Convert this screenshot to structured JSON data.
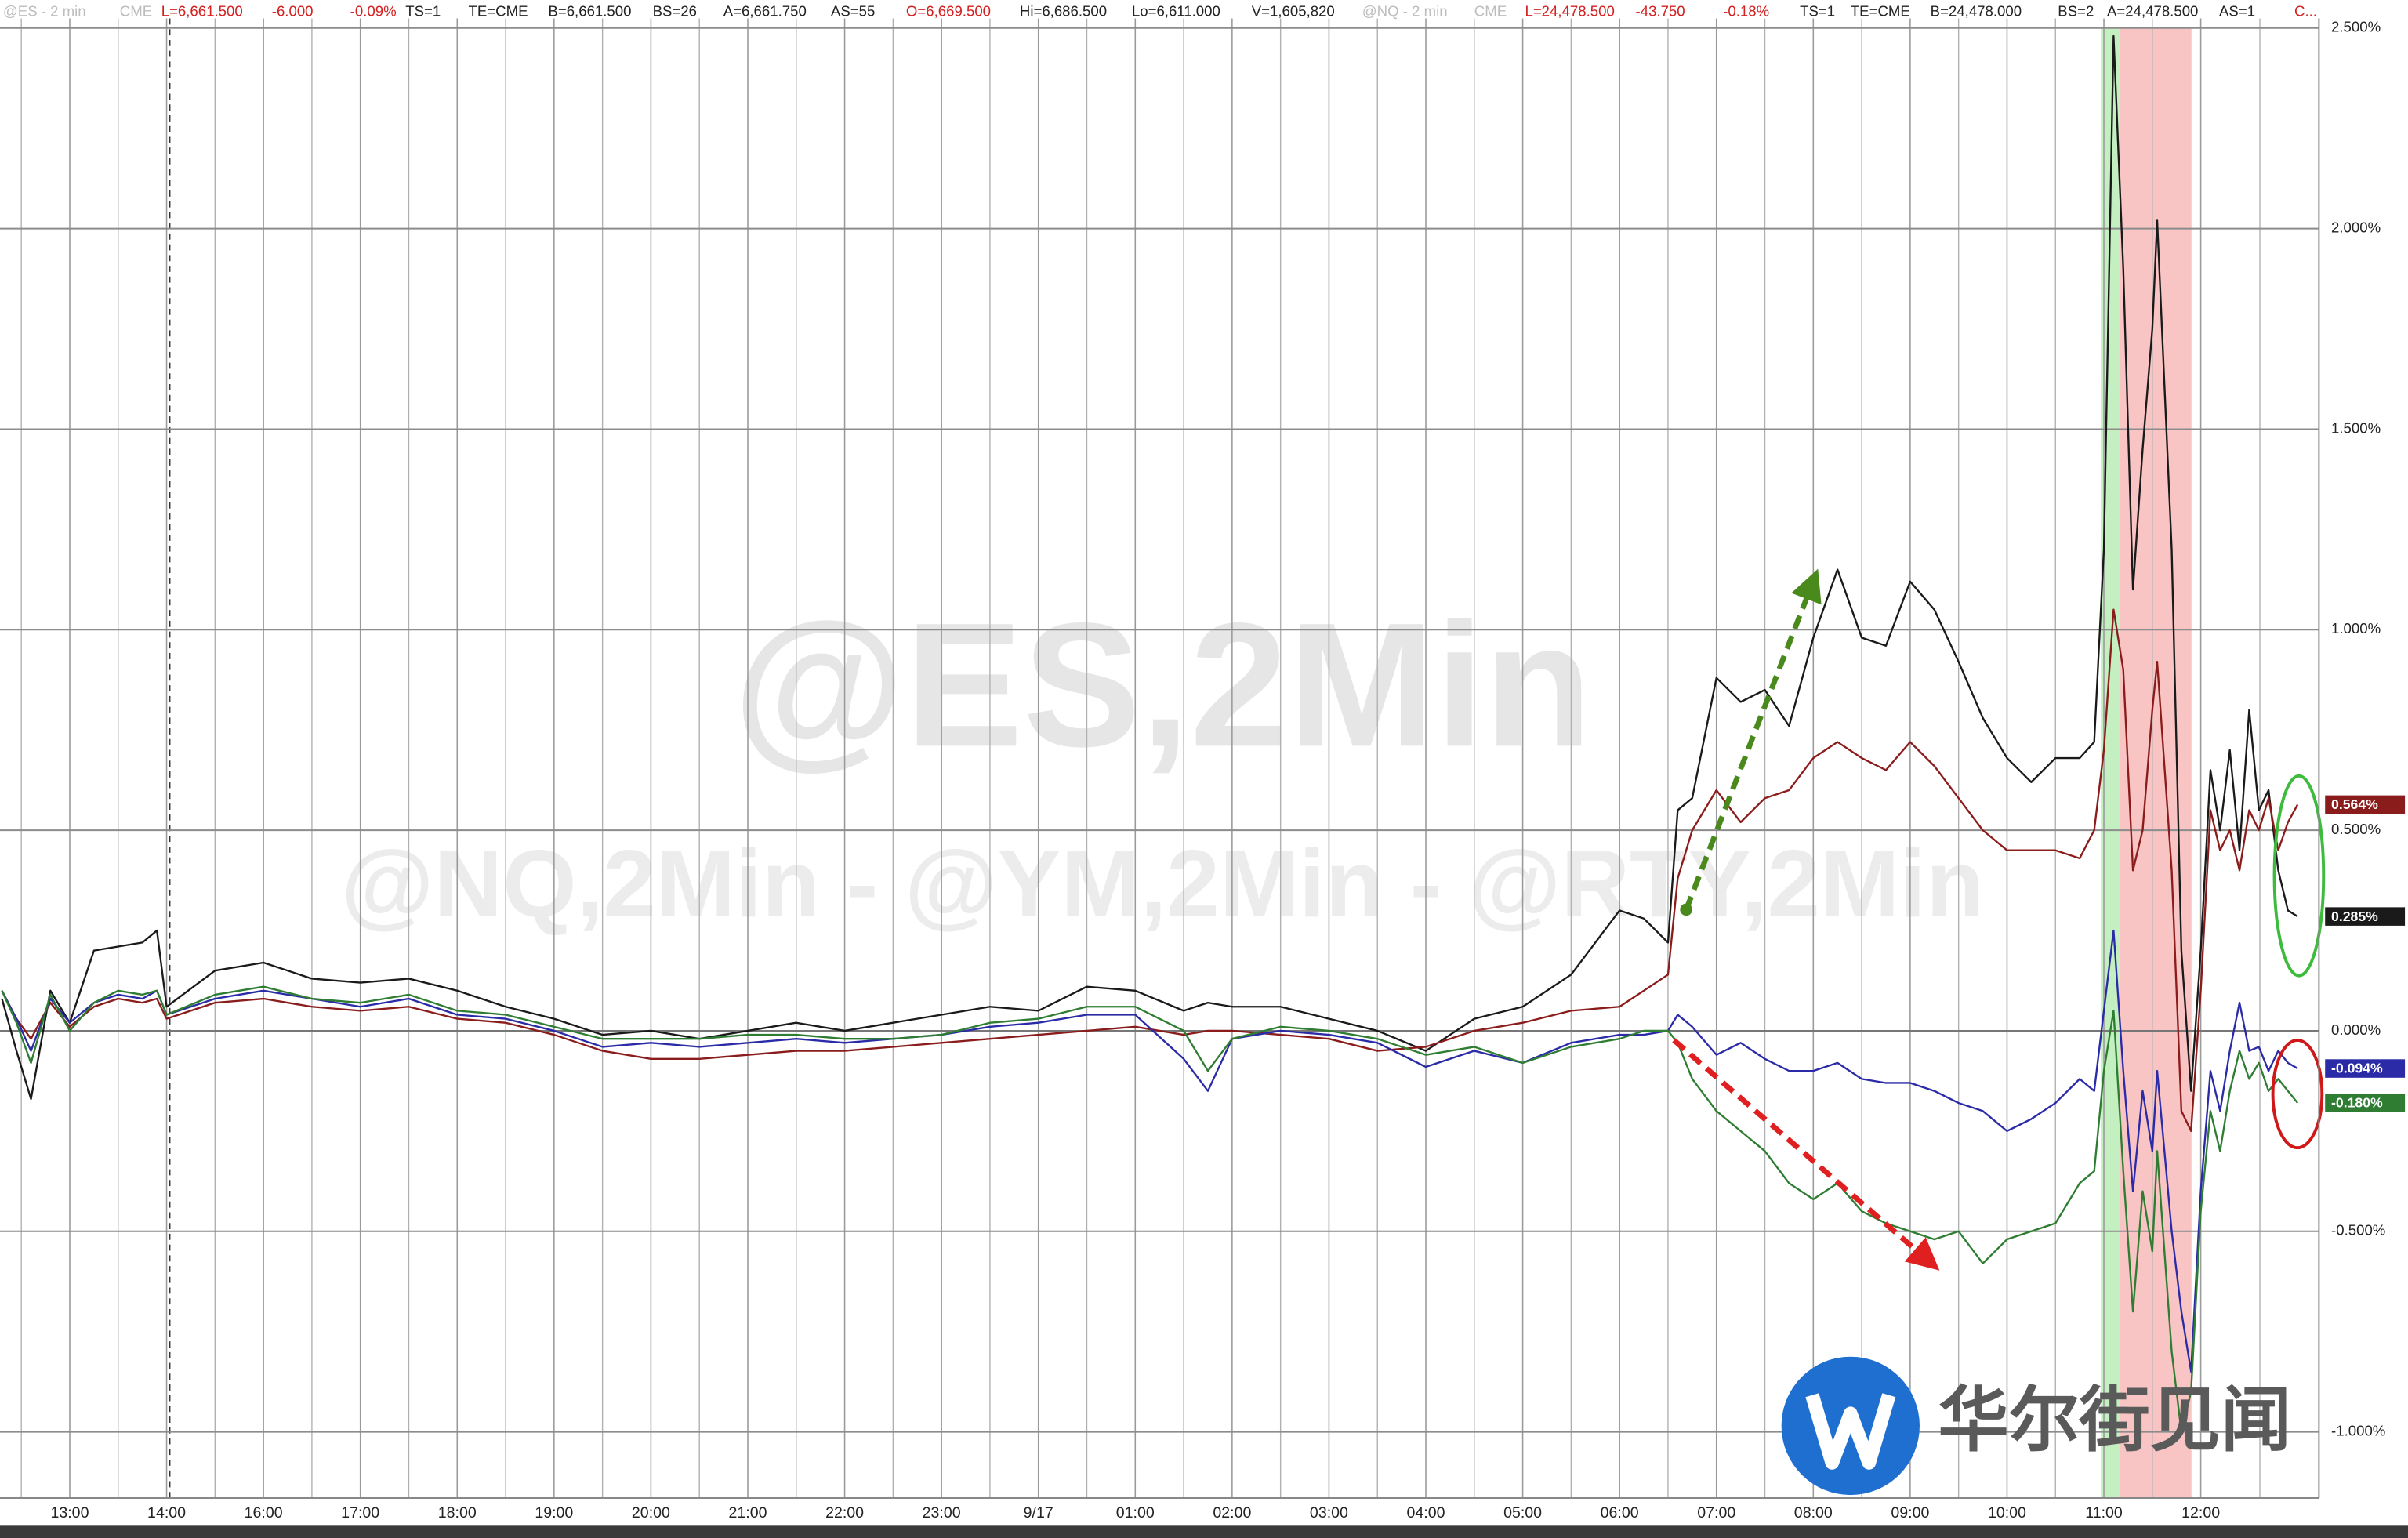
{
  "chart_data": {
    "type": "line",
    "header": [
      {
        "text": "@ES - 2 min",
        "color": "#bdbdbd"
      },
      {
        "text": "CME",
        "color": "#bdbdbd"
      },
      {
        "text": "L=6,661.500",
        "color": "#d42020"
      },
      {
        "text": "-6.000",
        "color": "#d42020"
      },
      {
        "text": "-0.09%",
        "color": "#d42020"
      },
      {
        "text": "TS=1",
        "color": "#222222"
      },
      {
        "text": "TE=CME",
        "color": "#222222"
      },
      {
        "text": "B=6,661.500",
        "color": "#222222"
      },
      {
        "text": "BS=26",
        "color": "#222222"
      },
      {
        "text": "A=6,661.750",
        "color": "#222222"
      },
      {
        "text": "AS=55",
        "color": "#222222"
      },
      {
        "text": "O=6,669.500",
        "color": "#d42020"
      },
      {
        "text": "Hi=6,686.500",
        "color": "#222222"
      },
      {
        "text": "Lo=6,611.000",
        "color": "#222222"
      },
      {
        "text": "V=1,605,820",
        "color": "#222222"
      },
      {
        "text": "@NQ - 2 min",
        "color": "#bdbdbd"
      },
      {
        "text": "CME",
        "color": "#bdbdbd"
      },
      {
        "text": "L=24,478.500",
        "color": "#d42020"
      },
      {
        "text": "-43.750",
        "color": "#d42020"
      },
      {
        "text": "-0.18%",
        "color": "#d42020"
      },
      {
        "text": "TS=1",
        "color": "#222222"
      },
      {
        "text": "TE=CME",
        "color": "#222222"
      },
      {
        "text": "B=24,478.000",
        "color": "#222222"
      },
      {
        "text": "BS=2",
        "color": "#222222"
      },
      {
        "text": "A=24,478.500",
        "color": "#222222"
      },
      {
        "text": "AS=1",
        "color": "#222222"
      },
      {
        "text": "C...",
        "color": "#d42020"
      }
    ],
    "watermarks": [
      "@ES,2Min",
      "@NQ,2Min - @YM,2Min - @RTY,2Min"
    ],
    "logo_text": "华尔街见闻",
    "x": [
      -0.7,
      -0.55,
      -0.4,
      -0.2,
      0,
      0.25,
      0.5,
      0.75,
      0.9,
      1.0,
      1.5,
      2,
      2.5,
      3,
      3.5,
      4,
      4.5,
      5,
      5.5,
      6,
      6.5,
      7,
      7.5,
      8,
      8.5,
      9,
      9.5,
      10,
      10.5,
      11,
      11.5,
      11.75,
      12,
      12.5,
      13,
      13.5,
      14,
      14.5,
      15,
      15.5,
      16,
      16.25,
      16.5,
      16.6,
      16.75,
      17,
      17.25,
      17.5,
      17.75,
      18,
      18.25,
      18.5,
      18.75,
      19,
      19.25,
      19.5,
      19.75,
      20,
      20.25,
      20.5,
      20.75,
      20.9,
      21.0,
      21.1,
      21.2,
      21.3,
      21.4,
      21.5,
      21.55,
      21.7,
      21.8,
      21.9,
      22.0,
      22.1,
      22.2,
      22.3,
      22.4,
      22.5,
      22.6,
      22.7,
      22.8,
      22.9,
      23.0
    ],
    "series": [
      {
        "color": "#1a1a1a",
        "last_label": "0.285%",
        "values": [
          0.08,
          -0.05,
          -0.17,
          0.1,
          0.02,
          0.2,
          0.21,
          0.22,
          0.25,
          0.06,
          0.15,
          0.17,
          0.13,
          0.12,
          0.13,
          0.1,
          0.06,
          0.03,
          -0.01,
          0.0,
          -0.02,
          0.0,
          0.02,
          0.0,
          0.02,
          0.04,
          0.06,
          0.05,
          0.11,
          0.1,
          0.05,
          0.07,
          0.06,
          0.06,
          0.03,
          0.0,
          -0.05,
          0.03,
          0.06,
          0.14,
          0.3,
          0.28,
          0.22,
          0.55,
          0.58,
          0.88,
          0.82,
          0.85,
          0.76,
          0.98,
          1.15,
          0.98,
          0.96,
          1.12,
          1.05,
          0.92,
          0.78,
          0.68,
          0.62,
          0.68,
          0.68,
          0.72,
          1.2,
          2.48,
          1.9,
          1.1,
          1.45,
          1.75,
          2.02,
          1.2,
          0.2,
          -0.15,
          0.2,
          0.65,
          0.5,
          0.7,
          0.45,
          0.8,
          0.55,
          0.6,
          0.4,
          0.3,
          0.285
        ]
      },
      {
        "color": "#8b1c1c",
        "last_label": "0.564%",
        "values": [
          0.1,
          0.03,
          -0.02,
          0.07,
          0.01,
          0.06,
          0.08,
          0.07,
          0.08,
          0.03,
          0.07,
          0.08,
          0.06,
          0.05,
          0.06,
          0.03,
          0.02,
          -0.01,
          -0.05,
          -0.07,
          -0.07,
          -0.06,
          -0.05,
          -0.05,
          -0.04,
          -0.03,
          -0.02,
          -0.01,
          0.0,
          0.01,
          -0.01,
          0.0,
          0.0,
          -0.01,
          -0.02,
          -0.05,
          -0.04,
          0.0,
          0.02,
          0.05,
          0.06,
          0.1,
          0.14,
          0.38,
          0.5,
          0.6,
          0.52,
          0.58,
          0.6,
          0.68,
          0.72,
          0.68,
          0.65,
          0.72,
          0.66,
          0.58,
          0.5,
          0.45,
          0.45,
          0.45,
          0.43,
          0.5,
          0.7,
          1.05,
          0.9,
          0.4,
          0.5,
          0.8,
          0.92,
          0.4,
          -0.2,
          -0.25,
          0.1,
          0.55,
          0.45,
          0.5,
          0.4,
          0.55,
          0.5,
          0.58,
          0.45,
          0.52,
          0.564
        ]
      },
      {
        "color": "#2b2ba8",
        "last_label": "-0.094%",
        "values": [
          0.1,
          0.03,
          -0.05,
          0.08,
          0.02,
          0.07,
          0.09,
          0.08,
          0.1,
          0.04,
          0.08,
          0.1,
          0.08,
          0.06,
          0.08,
          0.04,
          0.03,
          0.0,
          -0.04,
          -0.03,
          -0.04,
          -0.03,
          -0.02,
          -0.03,
          -0.02,
          -0.01,
          0.01,
          0.02,
          0.04,
          0.04,
          -0.07,
          -0.15,
          -0.02,
          0.0,
          -0.01,
          -0.03,
          -0.09,
          -0.05,
          -0.08,
          -0.03,
          -0.01,
          -0.01,
          0.0,
          0.04,
          0.01,
          -0.06,
          -0.03,
          -0.07,
          -0.1,
          -0.1,
          -0.08,
          -0.12,
          -0.13,
          -0.13,
          -0.15,
          -0.18,
          -0.2,
          -0.25,
          -0.22,
          -0.18,
          -0.12,
          -0.15,
          0.05,
          0.25,
          -0.1,
          -0.4,
          -0.15,
          -0.3,
          -0.1,
          -0.5,
          -0.7,
          -0.85,
          -0.4,
          -0.1,
          -0.2,
          -0.05,
          0.07,
          -0.05,
          -0.04,
          -0.1,
          -0.05,
          -0.08,
          -0.094
        ]
      },
      {
        "color": "#2e7d32",
        "last_label": "-0.180%",
        "values": [
          0.1,
          0.02,
          -0.08,
          0.09,
          0.0,
          0.07,
          0.1,
          0.09,
          0.1,
          0.04,
          0.09,
          0.11,
          0.08,
          0.07,
          0.09,
          0.05,
          0.04,
          0.01,
          -0.02,
          -0.02,
          -0.02,
          -0.01,
          -0.01,
          -0.02,
          -0.02,
          -0.01,
          0.02,
          0.03,
          0.06,
          0.06,
          0.0,
          -0.1,
          -0.02,
          0.01,
          0.0,
          -0.02,
          -0.06,
          -0.04,
          -0.08,
          -0.04,
          -0.02,
          0.0,
          0.0,
          -0.03,
          -0.12,
          -0.2,
          -0.25,
          -0.3,
          -0.38,
          -0.42,
          -0.38,
          -0.45,
          -0.48,
          -0.5,
          -0.52,
          -0.5,
          -0.58,
          -0.52,
          -0.5,
          -0.48,
          -0.38,
          -0.35,
          -0.1,
          0.05,
          -0.35,
          -0.7,
          -0.4,
          -0.55,
          -0.3,
          -0.8,
          -1.0,
          -0.9,
          -0.45,
          -0.2,
          -0.3,
          -0.15,
          -0.05,
          -0.12,
          -0.08,
          -0.15,
          -0.12,
          -0.15,
          -0.18
        ]
      }
    ],
    "xlim": [
      -0.72,
      23.22
    ],
    "xticks": [
      {
        "value": 0,
        "label": "13:00"
      },
      {
        "value": 1,
        "label": "14:00"
      },
      {
        "value": 2,
        "label": "16:00"
      },
      {
        "value": 3,
        "label": "17:00"
      },
      {
        "value": 4,
        "label": "18:00"
      },
      {
        "value": 5,
        "label": "19:00"
      },
      {
        "value": 6,
        "label": "20:00"
      },
      {
        "value": 7,
        "label": "21:00"
      },
      {
        "value": 8,
        "label": "22:00"
      },
      {
        "value": 9,
        "label": "23:00"
      },
      {
        "value": 10,
        "label": "9/17"
      },
      {
        "value": 11,
        "label": "01:00"
      },
      {
        "value": 12,
        "label": "02:00"
      },
      {
        "value": 13,
        "label": "03:00"
      },
      {
        "value": 14,
        "label": "04:00"
      },
      {
        "value": 15,
        "label": "05:00"
      },
      {
        "value": 16,
        "label": "06:00"
      },
      {
        "value": 17,
        "label": "07:00"
      },
      {
        "value": 18,
        "label": "08:00"
      },
      {
        "value": 19,
        "label": "09:00"
      },
      {
        "value": 20,
        "label": "10:00"
      },
      {
        "value": 21,
        "label": "11:00"
      },
      {
        "value": 22,
        "label": "12:00"
      }
    ],
    "x_minor_per_tick": 2,
    "session_break": 1,
    "ylim": [
      -1.165,
      2.57
    ],
    "yticks": [
      {
        "value": 2.5,
        "label": "2.500%"
      },
      {
        "value": 2.0,
        "label": "2.000%"
      },
      {
        "value": 1.5,
        "label": "1.500%"
      },
      {
        "value": 1.0,
        "label": "1.000%"
      },
      {
        "value": 0.5,
        "label": "0.500%"
      },
      {
        "value": 0,
        "label": "0.000%"
      },
      {
        "value": -0.5,
        "label": "-0.500%"
      },
      {
        "value": -1.0,
        "label": "-1.000%"
      }
    ],
    "grid": true
  }
}
